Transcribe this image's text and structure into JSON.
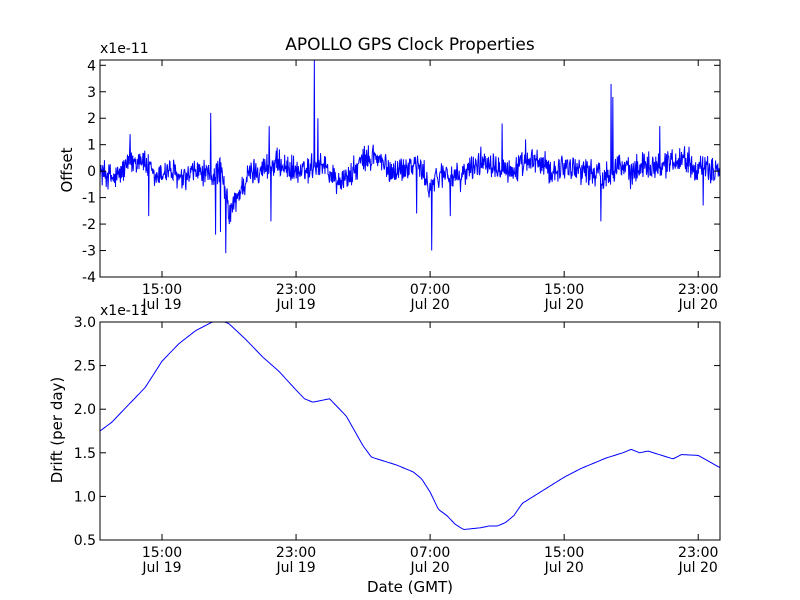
{
  "chart_data": [
    {
      "type": "line",
      "title": "APOLLO GPS Clock Properties",
      "xlabel": "",
      "ylabel": "Offset",
      "y_multiplier_label": "x1e-11",
      "ylim": [
        -4,
        4.2
      ],
      "yticks": [
        -4,
        -3,
        -2,
        -1,
        0,
        1,
        2,
        3,
        4
      ],
      "ytick_labels": [
        "-4",
        "-3",
        "-2",
        "-1",
        "0",
        "1",
        "2",
        "3",
        "4"
      ],
      "x_range_hours": [
        11.3,
        48.3
      ],
      "xticks": [
        {
          "hour": 15,
          "label1": "15:00",
          "label2": "Jul 19"
        },
        {
          "hour": 23,
          "label1": "23:00",
          "label2": "Jul 19"
        },
        {
          "hour": 31,
          "label1": "07:00",
          "label2": "Jul 20"
        },
        {
          "hour": 39,
          "label1": "15:00",
          "label2": "Jul 20"
        },
        {
          "hour": 47,
          "label1": "23:00",
          "label2": "Jul 20"
        }
      ],
      "grid": false,
      "color": "#0000ff",
      "noise_sigma": 0.45,
      "series": [
        {
          "name": "",
          "x_hours": [
            11.3,
            12.2,
            13.0,
            13.8,
            14.6,
            15.4,
            16.2,
            17.0,
            17.8,
            18.5,
            19.0,
            19.5,
            20.2,
            21.0,
            21.8,
            22.6,
            23.4,
            24.0,
            24.6,
            25.4,
            26.2,
            27.0,
            27.8,
            28.6,
            29.4,
            30.2,
            31.0,
            31.8,
            32.6,
            33.4,
            34.2,
            35.0,
            35.8,
            36.6,
            37.4,
            38.2,
            39.0,
            39.8,
            40.6,
            41.4,
            42.2,
            43.0,
            43.8,
            44.6,
            45.4,
            46.2,
            47.0,
            47.8,
            48.3
          ],
          "values": [
            0.0,
            -0.3,
            0.3,
            0.5,
            -0.3,
            0.1,
            -0.4,
            0.0,
            -0.2,
            0.1,
            -1.6,
            -1.0,
            -0.1,
            0.1,
            0.3,
            0.1,
            -0.1,
            0.2,
            0.3,
            -0.4,
            -0.2,
            0.4,
            0.5,
            0.0,
            0.1,
            0.3,
            -0.6,
            0.0,
            -0.3,
            0.1,
            0.4,
            0.3,
            0.0,
            0.2,
            0.4,
            0.0,
            0.2,
            0.1,
            0.0,
            -0.2,
            0.3,
            -0.1,
            0.3,
            0.2,
            0.4,
            0.5,
            0.1,
            0.0,
            0.2
          ]
        }
      ],
      "spikes": [
        {
          "hour": 17.9,
          "value": 2.2
        },
        {
          "hour": 18.2,
          "value": -2.4
        },
        {
          "hour": 18.5,
          "value": -2.3
        },
        {
          "hour": 18.8,
          "value": -3.1
        },
        {
          "hour": 21.5,
          "value": -1.9
        },
        {
          "hour": 24.1,
          "value": 4.2
        },
        {
          "hour": 24.3,
          "value": 2.0
        },
        {
          "hour": 30.2,
          "value": -1.6
        },
        {
          "hour": 31.1,
          "value": -3.0
        },
        {
          "hour": 32.2,
          "value": -1.7
        },
        {
          "hour": 35.3,
          "value": 1.8
        },
        {
          "hour": 41.8,
          "value": 3.3
        },
        {
          "hour": 41.9,
          "value": 2.8
        },
        {
          "hour": 41.2,
          "value": -1.9
        },
        {
          "hour": 44.7,
          "value": 1.7
        },
        {
          "hour": 47.3,
          "value": -1.3
        },
        {
          "hour": 13.1,
          "value": 1.4
        },
        {
          "hour": 14.2,
          "value": -1.7
        },
        {
          "hour": 21.4,
          "value": 1.7
        },
        {
          "hour": 27.6,
          "value": 1.0
        },
        {
          "hour": 36.7,
          "value": 1.2
        }
      ]
    },
    {
      "type": "line",
      "title": "",
      "xlabel": "Date (GMT)",
      "ylabel": "Drift (per day)",
      "y_multiplier_label": "x1e-11",
      "ylim": [
        0.5,
        3.0
      ],
      "yticks": [
        0.5,
        1.0,
        1.5,
        2.0,
        2.5,
        3.0
      ],
      "ytick_labels": [
        "0.5",
        "1.0",
        "1.5",
        "2.0",
        "2.5",
        "3.0"
      ],
      "x_range_hours": [
        11.3,
        48.3
      ],
      "xticks": [
        {
          "hour": 15,
          "label1": "15:00",
          "label2": "Jul 19"
        },
        {
          "hour": 23,
          "label1": "23:00",
          "label2": "Jul 19"
        },
        {
          "hour": 31,
          "label1": "07:00",
          "label2": "Jul 20"
        },
        {
          "hour": 39,
          "label1": "15:00",
          "label2": "Jul 20"
        },
        {
          "hour": 47,
          "label1": "23:00",
          "label2": "Jul 20"
        }
      ],
      "grid": false,
      "color": "#0000ff",
      "series": [
        {
          "name": "",
          "x_hours": [
            11.3,
            12.0,
            13.0,
            14.0,
            15.0,
            16.0,
            17.0,
            18.0,
            18.5,
            19.0,
            20.0,
            21.0,
            22.0,
            23.0,
            23.5,
            24.0,
            24.5,
            25.0,
            26.0,
            27.0,
            27.5,
            28.0,
            29.0,
            30.0,
            30.5,
            31.0,
            31.5,
            32.0,
            32.5,
            33.0,
            34.0,
            34.5,
            35.0,
            35.5,
            36.0,
            36.5,
            37.0,
            38.0,
            39.0,
            40.0,
            41.0,
            41.5,
            42.0,
            42.5,
            43.0,
            43.5,
            44.0,
            45.0,
            45.5,
            46.0,
            47.0,
            48.3
          ],
          "values": [
            1.75,
            1.85,
            2.05,
            2.25,
            2.55,
            2.75,
            2.9,
            3.0,
            3.02,
            2.98,
            2.8,
            2.6,
            2.43,
            2.22,
            2.12,
            2.08,
            2.1,
            2.12,
            1.92,
            1.58,
            1.45,
            1.42,
            1.36,
            1.28,
            1.2,
            1.05,
            0.85,
            0.78,
            0.68,
            0.62,
            0.64,
            0.66,
            0.66,
            0.7,
            0.78,
            0.92,
            0.98,
            1.1,
            1.22,
            1.32,
            1.4,
            1.44,
            1.47,
            1.5,
            1.54,
            1.5,
            1.52,
            1.46,
            1.43,
            1.48,
            1.47,
            1.33
          ]
        }
      ]
    }
  ]
}
